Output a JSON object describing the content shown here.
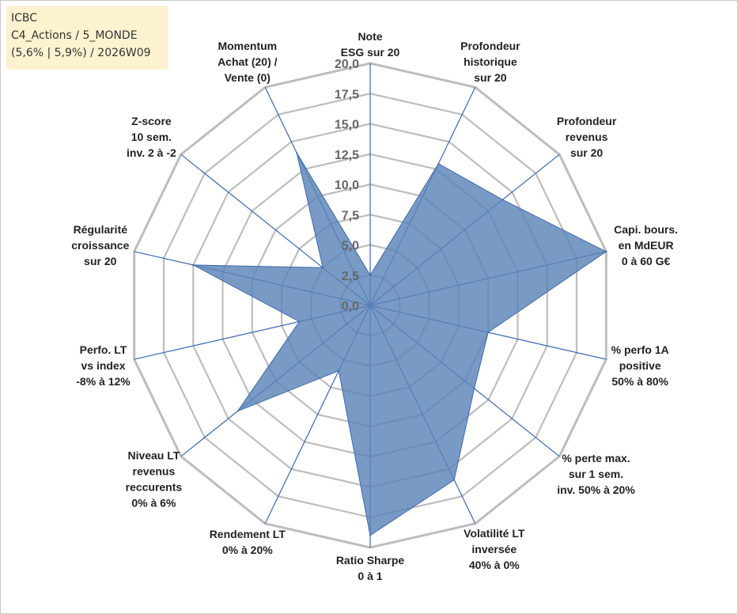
{
  "info": {
    "line1": "ICBC",
    "line2": "C4_Actions / 5_MONDE",
    "line3": "(5,6% | 5,9%) / 2026W09"
  },
  "colors": {
    "fill": "#5b84b8",
    "stroke": "#3f6aa8",
    "grid": "#bdbdbd",
    "spoke": "#3a66b0"
  },
  "chart_data": {
    "type": "radar",
    "rmax": 20,
    "ticks": [
      "0,0",
      "2,5",
      "5,0",
      "7,5",
      "10,0",
      "12,5",
      "15,0",
      "17,5",
      "20,0"
    ],
    "categories": [
      [
        "Note",
        "ESG sur 20"
      ],
      [
        "Profondeur",
        "historique",
        "sur 20"
      ],
      [
        "Profondeur",
        "revenus",
        "sur 20"
      ],
      [
        "Capi. bours.",
        "en MdEUR",
        "0 à 60 G€"
      ],
      [
        "% perfo 1A",
        "positive",
        "50% à 80%"
      ],
      [
        "% perte max.",
        "sur 1 sem.",
        "inv. 50% à 20%"
      ],
      [
        "Volatilité LT",
        "inversée",
        "40% à 0%"
      ],
      [
        "Ratio Sharpe",
        "0 à 1"
      ],
      [
        "Rendement LT",
        "0% à 20%"
      ],
      [
        "Niveau LT",
        "revenus",
        "reccurents",
        "0% à 6%"
      ],
      [
        "Perfo. LT",
        "vs index",
        "-8% à 12%"
      ],
      [
        "Régularité",
        "croissance",
        "sur 20"
      ],
      [
        "Z-score",
        "10 sem.",
        "inv. 2 à -2"
      ],
      [
        "Momentum",
        "Achat (20) /",
        "Vente (0)"
      ]
    ],
    "values": [
      2.5,
      13.0,
      14.0,
      20.0,
      10.0,
      11.0,
      16.0,
      19.0,
      6.0,
      14.0,
      6.0,
      15.0,
      5.0,
      14.0
    ]
  }
}
